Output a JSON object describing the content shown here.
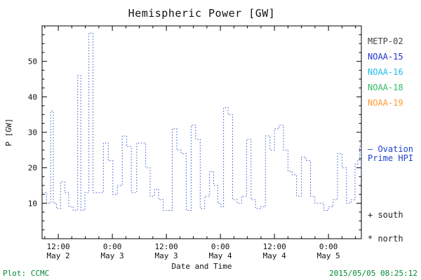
{
  "title": "Hemispheric Power [GW]",
  "footer": {
    "credit": "Plot: CCMC",
    "timestamp": "2015/05/05 08:25:12"
  },
  "colors": {
    "credit": "#008833",
    "frame": "#000000"
  },
  "legend": {
    "satellites": [
      {
        "label": "METP-02",
        "color": "#444444"
      },
      {
        "label": "NOAA-15",
        "color": "#2233cc"
      },
      {
        "label": "NOAA-16",
        "color": "#22bbee"
      },
      {
        "label": "NOAA-18",
        "color": "#33bb66"
      },
      {
        "label": "NOAA-19",
        "color": "#ff9933"
      }
    ],
    "series": {
      "line1": "– Ovation",
      "line2": "Prime HPI",
      "color": "#2244cc"
    },
    "south": {
      "label": "+ south",
      "color": "#222222"
    },
    "north": {
      "label": "* north",
      "color": "#222222"
    }
  },
  "chart_data": {
    "type": "line",
    "style": "dotted-steps",
    "title": "Hemispheric Power [GW]",
    "xlabel": "Date and Time",
    "ylabel": "P [GW]",
    "ylim": [
      0,
      60
    ],
    "xlim_hours": [
      8.4,
      79.3
    ],
    "y_ticks": [
      10,
      20,
      30,
      40,
      50
    ],
    "x_ticks": [
      {
        "hours": 12,
        "time": "12:00",
        "date": "May 2"
      },
      {
        "hours": 24,
        "time": "0:00",
        "date": "May 3"
      },
      {
        "hours": 36,
        "time": "12:00",
        "date": "May 3"
      },
      {
        "hours": 48,
        "time": "0:00",
        "date": "May 4"
      },
      {
        "hours": 60,
        "time": "12:00",
        "date": "May 4"
      },
      {
        "hours": 72,
        "time": "0:00",
        "date": "May 5"
      }
    ],
    "grid": false,
    "legend_position": "right",
    "series": [
      {
        "name": "Ovation Prime HPI",
        "color": "#3355cc",
        "points": [
          [
            8.4,
            13
          ],
          [
            9.4,
            10
          ],
          [
            10.3,
            36
          ],
          [
            10.9,
            10
          ],
          [
            11.6,
            8.5
          ],
          [
            12.5,
            16
          ],
          [
            13.4,
            13
          ],
          [
            14.3,
            9
          ],
          [
            15.3,
            8
          ],
          [
            16.3,
            46
          ],
          [
            17.0,
            8
          ],
          [
            17.9,
            13
          ],
          [
            18.8,
            58
          ],
          [
            19.7,
            13
          ],
          [
            20.9,
            13
          ],
          [
            22.0,
            27
          ],
          [
            23.1,
            22
          ],
          [
            24.1,
            12.5
          ],
          [
            25.1,
            15
          ],
          [
            26.2,
            29
          ],
          [
            27.2,
            26
          ],
          [
            28.2,
            13
          ],
          [
            29.4,
            27
          ],
          [
            30.4,
            27
          ],
          [
            31.4,
            20
          ],
          [
            32.4,
            12
          ],
          [
            33.4,
            14
          ],
          [
            34.3,
            11
          ],
          [
            35.3,
            8
          ],
          [
            36.3,
            8
          ],
          [
            37.3,
            31
          ],
          [
            38.3,
            25
          ],
          [
            39.3,
            24
          ],
          [
            40.4,
            8
          ],
          [
            41.5,
            32
          ],
          [
            42.5,
            28
          ],
          [
            43.5,
            8.5
          ],
          [
            44.5,
            12
          ],
          [
            45.6,
            19
          ],
          [
            46.5,
            15
          ],
          [
            47.4,
            10
          ],
          [
            48.1,
            9
          ],
          [
            48.7,
            37
          ],
          [
            49.7,
            35
          ],
          [
            50.7,
            11
          ],
          [
            51.7,
            10
          ],
          [
            52.7,
            12
          ],
          [
            53.8,
            28
          ],
          [
            54.8,
            11
          ],
          [
            55.8,
            8.5
          ],
          [
            56.9,
            9
          ],
          [
            58.0,
            29
          ],
          [
            59.0,
            25
          ],
          [
            60.0,
            31
          ],
          [
            61.0,
            32
          ],
          [
            62.0,
            25
          ],
          [
            63.0,
            19
          ],
          [
            63.9,
            18
          ],
          [
            64.9,
            12
          ],
          [
            66.0,
            23
          ],
          [
            67.0,
            22
          ],
          [
            68.0,
            12
          ],
          [
            69.0,
            10
          ],
          [
            70.0,
            10
          ],
          [
            71.0,
            8
          ],
          [
            72.0,
            9
          ],
          [
            73.0,
            11
          ],
          [
            74.0,
            24
          ],
          [
            75.0,
            20
          ],
          [
            76.0,
            10
          ],
          [
            77.0,
            11
          ],
          [
            77.9,
            21
          ],
          [
            78.5,
            22
          ],
          [
            78.9,
            26
          ],
          [
            79.3,
            17
          ]
        ]
      }
    ]
  }
}
